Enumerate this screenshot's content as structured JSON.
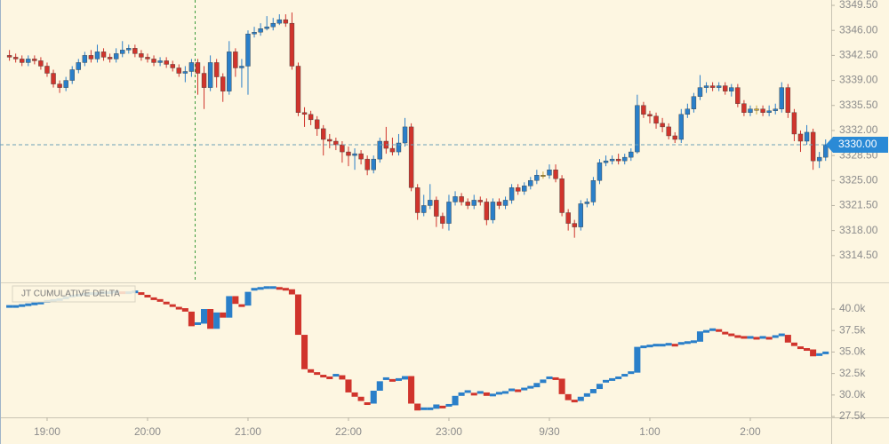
{
  "chart_data": [
    {
      "type": "candlestick",
      "categories": [
        null,
        null,
        null,
        null,
        null,
        null,
        "19:00",
        null,
        null,
        null,
        null,
        null,
        null,
        null,
        null,
        null,
        null,
        null,
        null,
        null,
        null,
        null,
        "20:00",
        null,
        null,
        null,
        null,
        null,
        null,
        null,
        null,
        null,
        null,
        null,
        null,
        null,
        null,
        null,
        "21:00",
        null,
        null,
        null,
        null,
        null,
        null,
        null,
        null,
        null,
        null,
        null,
        null,
        null,
        null,
        null,
        "22:00",
        null,
        null,
        null,
        null,
        null,
        null,
        null,
        null,
        null,
        null,
        null,
        null,
        null,
        null,
        null,
        "23:00",
        null,
        null,
        null,
        null,
        null,
        null,
        null,
        null,
        null,
        null,
        null,
        null,
        null,
        null,
        null,
        "9/30",
        null,
        null,
        null,
        null,
        null,
        null,
        null,
        null,
        null,
        null,
        null,
        null,
        null,
        null,
        null,
        "1:00",
        null,
        null,
        null,
        null,
        null,
        null,
        null,
        null,
        null,
        null,
        null,
        null,
        null,
        null,
        null,
        "2:00",
        null,
        null,
        null,
        null,
        null,
        null,
        null,
        null,
        null,
        null,
        null,
        null
      ],
      "open": [
        3342.5,
        3342.25,
        3342.0,
        3341.5,
        3342.0,
        3341.75,
        3341.0,
        3340.0,
        3338.5,
        3338.0,
        3339.0,
        3340.5,
        3341.5,
        3342.5,
        3342.0,
        3343.0,
        3342.25,
        3342.0,
        3342.75,
        3343.25,
        3343.5,
        3342.75,
        3342.25,
        3342.0,
        3341.5,
        3341.75,
        3341.25,
        3340.75,
        3340.0,
        3340.25,
        3341.5,
        3340.0,
        3338.0,
        3341.5,
        3339.5,
        3337.5,
        3343.0,
        3340.75,
        3341.0,
        3345.5,
        3345.75,
        3346.25,
        3346.5,
        3347.0,
        3347.5,
        3347.0,
        3341.0,
        3334.5,
        3334.25,
        3333.5,
        3332.25,
        3330.75,
        3330.5,
        3330.0,
        3329.0,
        3328.5,
        3328.75,
        3328.0,
        3326.5,
        3328.0,
        3330.5,
        3329.5,
        3329.0,
        3330.25,
        3332.5,
        3324.0,
        3320.5,
        3321.5,
        3322.25,
        3320.0,
        3319.0,
        3322.0,
        3322.75,
        3322.0,
        3321.5,
        3322.25,
        3322.0,
        3319.5,
        3322.0,
        3321.5,
        3322.25,
        3324.0,
        3323.5,
        3324.25,
        3325.0,
        3325.75,
        3325.75,
        3326.5,
        3325.25,
        3320.5,
        3319.0,
        3318.5,
        3321.75,
        3322.0,
        3325.0,
        3327.5,
        3327.75,
        3328.0,
        3327.75,
        3328.25,
        3329.0,
        3335.5,
        3334.25,
        3334.0,
        3333.0,
        3332.5,
        3331.25,
        3330.75,
        3334.25,
        3335.0,
        3336.75,
        3338.0,
        3338.25,
        3338.0,
        3338.25,
        3337.5,
        3338.0,
        3335.75,
        3334.5,
        3335.0,
        3335.0,
        3334.5,
        3334.75,
        3335.0,
        3338.0,
        3334.5,
        3331.5,
        3330.5,
        3331.75,
        3327.75,
        3328.25
      ],
      "high": [
        3343.25,
        3342.75,
        3342.5,
        3342.5,
        3342.5,
        3342.25,
        3341.5,
        3340.5,
        3339.0,
        3339.5,
        3341.0,
        3342.0,
        3343.0,
        3343.25,
        3344.0,
        3343.5,
        3342.75,
        3343.5,
        3344.5,
        3344.0,
        3344.0,
        3343.25,
        3342.75,
        3342.5,
        3342.25,
        3342.25,
        3341.75,
        3341.25,
        3341.0,
        3342.0,
        3342.0,
        3341.0,
        3342.5,
        3342.0,
        3340.0,
        3344.5,
        3343.5,
        3342.0,
        3346.0,
        3346.5,
        3347.0,
        3348.0,
        3347.75,
        3348.25,
        3348.25,
        3348.5,
        3341.5,
        3335.25,
        3334.75,
        3334.0,
        3332.75,
        3331.5,
        3331.0,
        3330.5,
        3329.75,
        3329.5,
        3329.25,
        3328.5,
        3328.5,
        3331.0,
        3332.5,
        3331.0,
        3331.5,
        3333.75,
        3333.0,
        3324.5,
        3323.0,
        3324.5,
        3322.75,
        3320.5,
        3323.0,
        3323.5,
        3323.25,
        3322.5,
        3323.0,
        3322.75,
        3322.5,
        3322.5,
        3322.5,
        3322.75,
        3324.5,
        3324.5,
        3324.75,
        3325.5,
        3326.5,
        3326.25,
        3327.25,
        3327.25,
        3325.75,
        3321.0,
        3319.5,
        3322.25,
        3322.5,
        3325.5,
        3328.0,
        3328.5,
        3328.5,
        3328.75,
        3328.75,
        3329.5,
        3337.0,
        3336.0,
        3334.75,
        3334.5,
        3333.75,
        3333.0,
        3331.75,
        3335.0,
        3335.75,
        3337.25,
        3339.75,
        3338.75,
        3338.75,
        3338.75,
        3338.75,
        3338.5,
        3338.5,
        3336.25,
        3335.5,
        3335.5,
        3335.5,
        3335.5,
        3335.75,
        3338.75,
        3338.5,
        3335.0,
        3332.0,
        3332.75,
        3332.25,
        3329.0,
        3330.75
      ],
      "low": [
        3341.75,
        3341.5,
        3341.0,
        3341.0,
        3341.25,
        3340.5,
        3339.5,
        3338.0,
        3337.25,
        3337.5,
        3338.5,
        3340.0,
        3341.0,
        3341.5,
        3341.5,
        3341.75,
        3341.5,
        3341.5,
        3342.25,
        3342.75,
        3342.25,
        3341.75,
        3341.5,
        3341.0,
        3341.0,
        3340.75,
        3340.25,
        3339.5,
        3338.75,
        3339.5,
        3337.0,
        3335.0,
        3337.5,
        3338.0,
        3336.0,
        3337.0,
        3339.5,
        3338.0,
        3337.0,
        3345.0,
        3345.25,
        3346.0,
        3346.0,
        3346.75,
        3346.5,
        3340.5,
        3334.0,
        3332.5,
        3332.75,
        3331.25,
        3328.5,
        3329.5,
        3329.25,
        3327.5,
        3327.0,
        3326.5,
        3327.25,
        3325.75,
        3326.0,
        3327.5,
        3328.75,
        3328.5,
        3328.5,
        3329.75,
        3323.5,
        3319.5,
        3320.0,
        3321.0,
        3318.5,
        3318.25,
        3318.0,
        3321.5,
        3321.5,
        3321.0,
        3321.0,
        3321.5,
        3318.75,
        3319.0,
        3321.0,
        3321.0,
        3321.75,
        3323.0,
        3323.0,
        3323.75,
        3324.5,
        3325.25,
        3325.25,
        3324.75,
        3320.0,
        3318.0,
        3317.0,
        3318.0,
        3321.25,
        3321.5,
        3324.5,
        3327.0,
        3327.25,
        3327.25,
        3327.25,
        3327.75,
        3328.75,
        3333.75,
        3333.0,
        3332.25,
        3331.75,
        3330.75,
        3330.25,
        3330.25,
        3333.75,
        3334.5,
        3336.25,
        3337.25,
        3337.5,
        3337.5,
        3337.0,
        3336.75,
        3335.25,
        3334.0,
        3334.0,
        3334.25,
        3334.0,
        3334.0,
        3334.25,
        3334.5,
        3333.75,
        3330.5,
        3329.0,
        3330.0,
        3326.5,
        3326.75,
        3327.75
      ],
      "close": [
        3342.25,
        3342.0,
        3341.5,
        3342.0,
        3341.75,
        3341.0,
        3340.0,
        3338.5,
        3338.0,
        3339.0,
        3340.5,
        3341.5,
        3342.5,
        3342.0,
        3343.0,
        3342.25,
        3342.0,
        3342.75,
        3343.25,
        3343.5,
        3342.75,
        3342.25,
        3342.0,
        3341.5,
        3341.75,
        3341.25,
        3340.75,
        3340.0,
        3340.25,
        3341.5,
        3340.0,
        3338.0,
        3341.5,
        3339.5,
        3337.5,
        3343.0,
        3340.75,
        3341.0,
        3345.5,
        3345.75,
        3346.25,
        3346.5,
        3347.0,
        3347.5,
        3347.0,
        3341.0,
        3334.5,
        3334.25,
        3333.5,
        3332.25,
        3330.75,
        3330.5,
        3330.0,
        3329.0,
        3328.5,
        3328.75,
        3328.0,
        3326.5,
        3328.0,
        3330.5,
        3329.5,
        3329.0,
        3330.25,
        3332.5,
        3324.0,
        3320.5,
        3321.5,
        3322.25,
        3320.0,
        3319.0,
        3322.0,
        3322.75,
        3322.0,
        3321.5,
        3322.25,
        3322.0,
        3319.5,
        3322.0,
        3321.5,
        3322.25,
        3324.0,
        3323.5,
        3324.25,
        3325.0,
        3325.75,
        3325.75,
        3326.5,
        3325.25,
        3320.5,
        3319.0,
        3318.5,
        3321.75,
        3322.0,
        3325.0,
        3327.5,
        3327.75,
        3328.0,
        3327.75,
        3328.25,
        3329.0,
        3335.5,
        3334.25,
        3334.0,
        3333.0,
        3332.5,
        3331.25,
        3330.75,
        3334.25,
        3335.0,
        3336.75,
        3338.0,
        3338.25,
        3338.0,
        3338.25,
        3337.5,
        3338.0,
        3335.75,
        3334.5,
        3335.0,
        3335.0,
        3334.5,
        3334.75,
        3335.0,
        3338.0,
        3334.5,
        3331.5,
        3330.5,
        3331.75,
        3327.75,
        3328.25,
        3330.0
      ],
      "up_color": "#2a7fc9",
      "down_color": "#d0342c",
      "flat_color": "#c9a530",
      "ylim": [
        3310.75,
        3350.25
      ],
      "yticks": [
        {
          "value": 3314.5,
          "label": "3314.50"
        },
        {
          "value": 3318,
          "label": "3318.00"
        },
        {
          "value": 3321.5,
          "label": "3321.50"
        },
        {
          "value": 3325,
          "label": "3325.00"
        },
        {
          "value": 3328.5,
          "label": "3328.50"
        },
        {
          "value": 3332,
          "label": "3332.00"
        },
        {
          "value": 3335.5,
          "label": "3335.50"
        },
        {
          "value": 3339,
          "label": "3339.00"
        },
        {
          "value": 3342.5,
          "label": "3342.50"
        },
        {
          "value": 3346,
          "label": "3346.00"
        },
        {
          "value": 3349.5,
          "label": "3349.50"
        }
      ],
      "last_price": {
        "value": 3330,
        "label": "3330.00"
      }
    },
    {
      "type": "step",
      "title": "JT CUMULATIVE DELTA",
      "values": [
        40300,
        40300,
        40400,
        40500,
        40600,
        40700,
        40900,
        41000,
        41100,
        41300,
        41500,
        41600,
        41700,
        41800,
        41800,
        41900,
        41900,
        42000,
        41900,
        41900,
        42000,
        41800,
        41500,
        41200,
        41000,
        40700,
        40400,
        40100,
        39700,
        38000,
        38300,
        40000,
        37700,
        39600,
        39000,
        41500,
        40600,
        40400,
        42000,
        42300,
        42400,
        42500,
        42500,
        42400,
        42300,
        41700,
        37000,
        33000,
        32600,
        32500,
        32200,
        32000,
        32300,
        31800,
        30300,
        29800,
        29300,
        29000,
        30500,
        31600,
        31900,
        31700,
        31800,
        32200,
        29000,
        28200,
        28400,
        28400,
        28900,
        28600,
        28800,
        29900,
        30300,
        30400,
        30100,
        30300,
        29900,
        30000,
        30200,
        30300,
        30600,
        30500,
        30700,
        30900,
        31400,
        31800,
        32000,
        31900,
        30100,
        29400,
        29300,
        29800,
        30200,
        30700,
        31300,
        31600,
        31800,
        32000,
        32300,
        32600,
        35600,
        35600,
        35700,
        35800,
        35800,
        35900,
        35800,
        36000,
        36100,
        36200,
        37400,
        37400,
        37600,
        37500,
        37200,
        37000,
        36800,
        36700,
        36700,
        36600,
        36700,
        36600,
        36800,
        37000,
        36100,
        35700,
        35500,
        35300,
        34500,
        34700,
        34900
      ],
      "up_color": "#2a7fc9",
      "down_color": "#d0342c",
      "ylim": [
        27400,
        43100
      ],
      "yticks": [
        {
          "value": 27500,
          "label": "27.5k"
        },
        {
          "value": 30000,
          "label": "30.0k"
        },
        {
          "value": 32500,
          "label": "32.5k"
        },
        {
          "value": 35000,
          "label": "35.0k"
        },
        {
          "value": 37500,
          "label": "37.5k"
        },
        {
          "value": 40000,
          "label": "40.0k"
        }
      ]
    }
  ]
}
